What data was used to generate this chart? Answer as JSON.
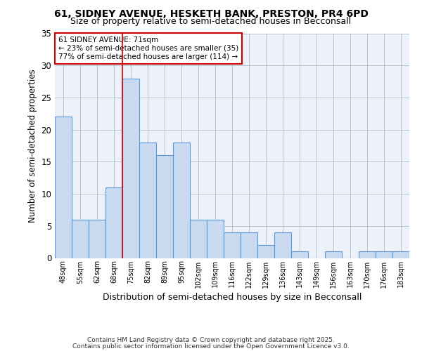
{
  "title_line1": "61, SIDNEY AVENUE, HESKETH BANK, PRESTON, PR4 6PD",
  "title_line2": "Size of property relative to semi-detached houses in Becconsall",
  "xlabel": "Distribution of semi-detached houses by size in Becconsall",
  "ylabel": "Number of semi-detached properties",
  "categories": [
    "48sqm",
    "55sqm",
    "62sqm",
    "68sqm",
    "75sqm",
    "82sqm",
    "89sqm",
    "95sqm",
    "102sqm",
    "109sqm",
    "116sqm",
    "122sqm",
    "129sqm",
    "136sqm",
    "143sqm",
    "149sqm",
    "156sqm",
    "163sqm",
    "170sqm",
    "176sqm",
    "183sqm"
  ],
  "values": [
    22,
    6,
    6,
    11,
    28,
    18,
    16,
    18,
    6,
    6,
    4,
    4,
    2,
    4,
    1,
    0,
    1,
    0,
    1,
    1,
    1
  ],
  "bar_color": "#c9d9f0",
  "bar_edge_color": "#5b9bd5",
  "grid_color": "#b0bec8",
  "pct_smaller": 23,
  "pct_larger": 77,
  "count_smaller": 35,
  "count_larger": 114,
  "vline_bin_index": 3,
  "vline_color": "#cc0000",
  "annotation_box_color": "#cc0000",
  "ylim": [
    0,
    35
  ],
  "yticks": [
    0,
    5,
    10,
    15,
    20,
    25,
    30,
    35
  ],
  "footnote_line1": "Contains HM Land Registry data © Crown copyright and database right 2025.",
  "footnote_line2": "Contains public sector information licensed under the Open Government Licence v3.0.",
  "bg_color": "#edf2fa"
}
